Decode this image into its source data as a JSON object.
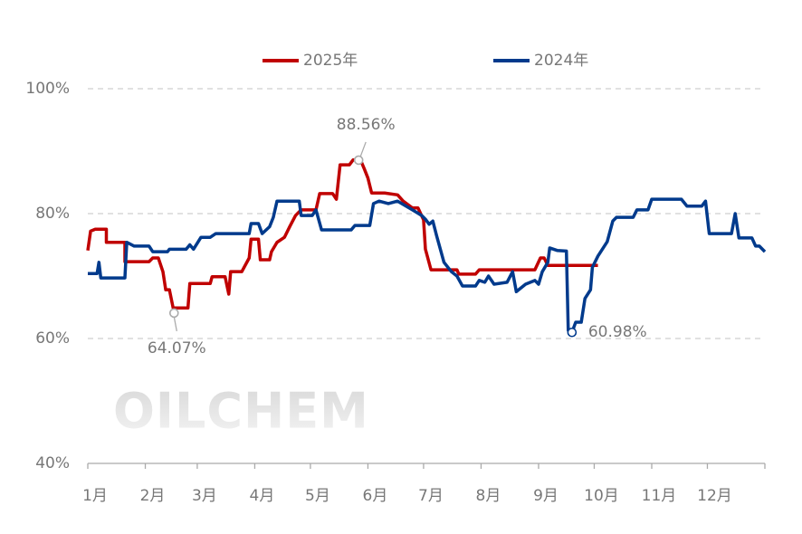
{
  "chart_data": {
    "type": "line",
    "watermark": "OILCHEM",
    "xlim": [
      0,
      365
    ],
    "xticks": [
      {
        "value": 0,
        "label": "1月"
      },
      {
        "value": 31,
        "label": "2月"
      },
      {
        "value": 59,
        "label": "3月"
      },
      {
        "value": 90,
        "label": "4月"
      },
      {
        "value": 120,
        "label": "5月"
      },
      {
        "value": 151,
        "label": "6月"
      },
      {
        "value": 181,
        "label": "7月"
      },
      {
        "value": 212,
        "label": "8月"
      },
      {
        "value": 243,
        "label": "9月"
      },
      {
        "value": 273,
        "label": "10月"
      },
      {
        "value": 304,
        "label": "11月"
      },
      {
        "value": 334,
        "label": "12月"
      }
    ],
    "ylim": [
      40,
      100
    ],
    "yticks": [
      {
        "value": 40,
        "label": "40%"
      },
      {
        "value": 60,
        "label": "60%"
      },
      {
        "value": 80,
        "label": "80%"
      },
      {
        "value": 100,
        "label": "100%"
      }
    ],
    "grid": true,
    "legend": "top",
    "series": [
      {
        "name": "2025年",
        "color": "#c00000",
        "x": [
          0,
          1.5,
          4,
          10,
          10,
          20,
          20,
          33,
          35,
          38,
          40.5,
          42,
          44,
          46,
          54,
          55,
          66,
          67,
          74,
          76,
          77,
          83,
          87,
          88,
          92,
          93,
          98,
          99,
          102,
          106,
          109,
          112,
          115,
          123,
          125,
          132,
          134,
          136,
          141,
          143,
          147,
          149,
          151,
          153,
          160,
          167,
          170,
          175,
          178,
          181,
          182,
          185,
          199,
          200,
          209,
          211,
          241,
          244,
          246,
          248,
          275
        ],
        "values": [
          74.1,
          77.2,
          77.5,
          77.5,
          75.4,
          75.4,
          72.3,
          72.3,
          72.9,
          72.9,
          70.7,
          67.8,
          67.8,
          64.9,
          64.9,
          68.8,
          68.8,
          69.9,
          69.9,
          67.1,
          70.7,
          70.7,
          72.9,
          75.9,
          75.9,
          72.6,
          72.6,
          73.9,
          75.4,
          76.2,
          78,
          79.7,
          80.6,
          80.6,
          83.2,
          83.2,
          82.3,
          87.8,
          87.8,
          88.6,
          88.6,
          87.2,
          85.7,
          83.3,
          83.3,
          83,
          82,
          80.9,
          80.9,
          79,
          74.3,
          71,
          71,
          70.3,
          70.3,
          71,
          71,
          72.9,
          72.9,
          71.7,
          71.7
        ]
      },
      {
        "name": "2024年",
        "color": "#003a8c",
        "x": [
          0,
          5,
          6,
          7,
          20,
          21,
          25,
          33,
          35,
          43,
          44,
          53,
          55,
          57,
          61,
          66,
          69,
          87,
          88,
          92,
          94,
          98,
          100,
          102,
          114,
          115,
          121,
          123,
          126,
          142,
          144,
          152,
          154,
          157,
          162,
          167,
          175,
          180,
          182,
          184,
          186,
          188,
          192,
          196,
          199,
          202,
          209,
          211,
          214,
          216,
          219,
          226,
          229,
          231,
          236,
          241,
          243,
          245,
          248,
          249,
          253,
          258,
          259,
          261,
          263,
          266,
          268,
          271,
          272,
          275,
          280,
          283,
          285,
          294,
          296,
          302,
          304,
          320,
          323,
          331,
          333,
          335,
          347,
          349,
          351,
          358,
          360,
          362,
          365
        ],
        "values": [
          70.4,
          70.4,
          72.2,
          69.7,
          69.7,
          75.4,
          74.8,
          74.8,
          73.9,
          73.9,
          74.3,
          74.3,
          75,
          74.3,
          76.2,
          76.2,
          76.8,
          76.8,
          78.4,
          78.4,
          76.8,
          77.9,
          79.4,
          82,
          82,
          79.7,
          79.7,
          80.6,
          77.4,
          77.4,
          78.1,
          78.1,
          81.6,
          82,
          81.6,
          82,
          80.6,
          79.7,
          79.1,
          78.3,
          78.8,
          76.5,
          72.2,
          70.7,
          70,
          68.4,
          68.4,
          69.3,
          69,
          70,
          68.7,
          69,
          70.7,
          67.5,
          68.7,
          69.3,
          68.7,
          70.7,
          72.2,
          74.5,
          74.1,
          74,
          61.3,
          60.98,
          62.6,
          62.6,
          66.4,
          67.8,
          71.4,
          73.2,
          75.5,
          78.8,
          79.4,
          79.4,
          80.6,
          80.6,
          82.3,
          82.3,
          81.2,
          81.2,
          82,
          76.8,
          76.8,
          80,
          76.1,
          76.1,
          74.8,
          74.8,
          73.9
        ]
      }
    ],
    "annotations": [
      {
        "text": "88.56%",
        "x": 146,
        "y": 88.56,
        "series": 0
      },
      {
        "text": "64.07%",
        "x": 46.5,
        "y": 64.07,
        "series": 0
      },
      {
        "text": "60.98%",
        "x": 261,
        "y": 60.98,
        "series": 1
      }
    ]
  }
}
